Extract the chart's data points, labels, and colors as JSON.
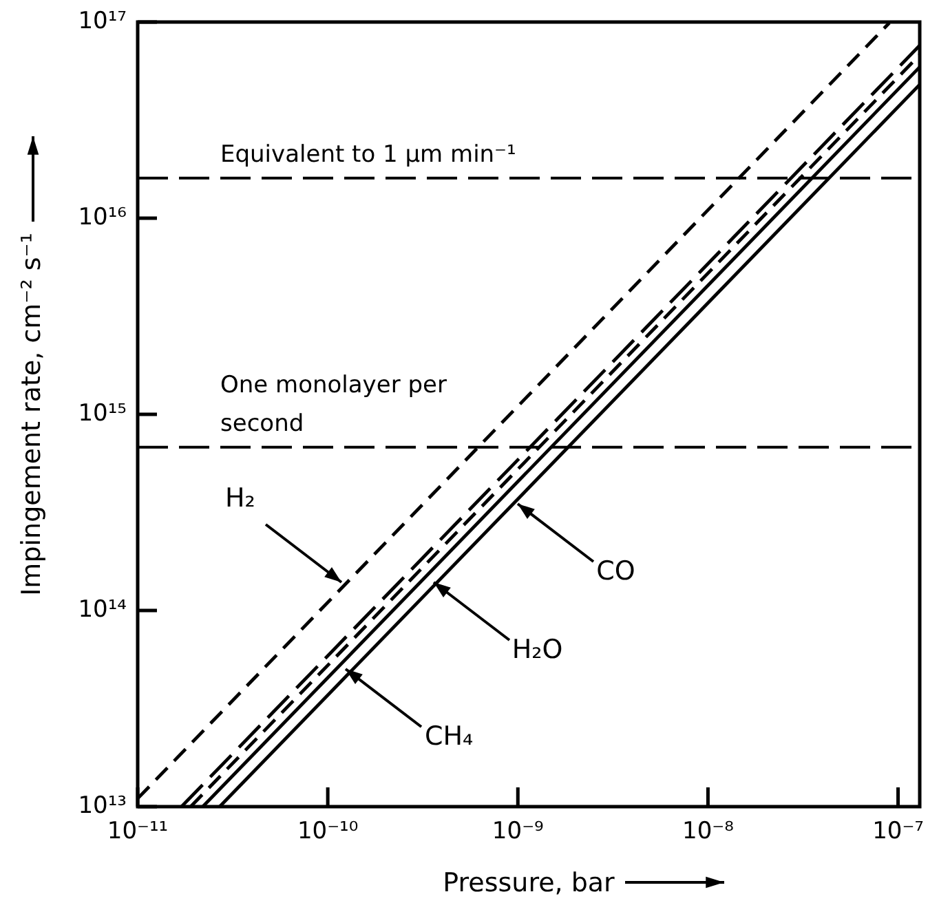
{
  "chart_data": {
    "type": "line",
    "xlabel": "Pressure, bar",
    "ylabel": "Impingement rate, cm⁻² s⁻¹",
    "log": "xy",
    "grid": false,
    "legend": false,
    "marker": "none",
    "xlim": [
      1e-11,
      1.3e-07
    ],
    "ylim": [
      10000000000000.0,
      1e+17
    ],
    "xticks": [
      {
        "value": 1e-11,
        "label": "10⁻¹¹"
      },
      {
        "value": 1e-10,
        "label": "10⁻¹⁰"
      },
      {
        "value": 1e-09,
        "label": "10⁻⁹"
      },
      {
        "value": 1e-08,
        "label": "10⁻⁸"
      },
      {
        "value": 1e-07,
        "label": "10⁻⁷"
      }
    ],
    "yticks": [
      {
        "value": 10000000000000.0,
        "label": "10¹³"
      },
      {
        "value": 100000000000000.0,
        "label": "10¹⁴"
      },
      {
        "value": 1000000000000000.0,
        "label": "10¹⁵"
      },
      {
        "value": 1e+16,
        "label": "10¹⁶"
      },
      {
        "value": 1e+17,
        "label": "10¹⁷"
      }
    ],
    "series": [
      {
        "color": "#000000",
        "line_style": "dashed",
        "x": [
          1e-11,
          9e-08
        ],
        "values": [
          11000000000000.0,
          9.9e+16
        ]
      },
      {
        "color": "#000000",
        "line_style": "dashed",
        "x": [
          1.7e-11,
          1.3e-07
        ],
        "values": [
          10000000000000.0,
          7.6e+16
        ]
      },
      {
        "color": "#000000",
        "line_style": "dashed",
        "x": [
          1.9e-11,
          1.3e-07
        ],
        "values": [
          10000000000000.0,
          6.8e+16
        ]
      },
      {
        "color": "#000000",
        "line_style": "solid",
        "x": [
          2.2e-11,
          1.3e-07
        ],
        "values": [
          10000000000000.0,
          5.9e+16
        ]
      },
      {
        "color": "#000000",
        "line_style": "solid",
        "x": [
          2.7e-11,
          1.3e-07
        ],
        "values": [
          10000000000000.0,
          4.8e+16
        ]
      }
    ],
    "ref_lines": [
      {
        "axis": "y",
        "value": 1.6e+16,
        "label": "Equivalent to 1 µm min⁻¹",
        "color": "#000000",
        "line_style": "dashed"
      },
      {
        "axis": "y",
        "value": 680000000000000.0,
        "label": "One monolayer per second",
        "color": "#000000",
        "line_style": "dashed"
      }
    ],
    "annotations": [
      {
        "text": "H₂",
        "x": 1.19e-10,
        "y": 140000000000000.0
      },
      {
        "text": "CH₄",
        "x": 1.25e-10,
        "y": 50000000000000.0
      },
      {
        "text": "H₂O",
        "x": 3.6e-10,
        "y": 140000000000000.0
      },
      {
        "text": "CO",
        "x": 1e-09,
        "y": 350000000000000.0
      }
    ]
  }
}
